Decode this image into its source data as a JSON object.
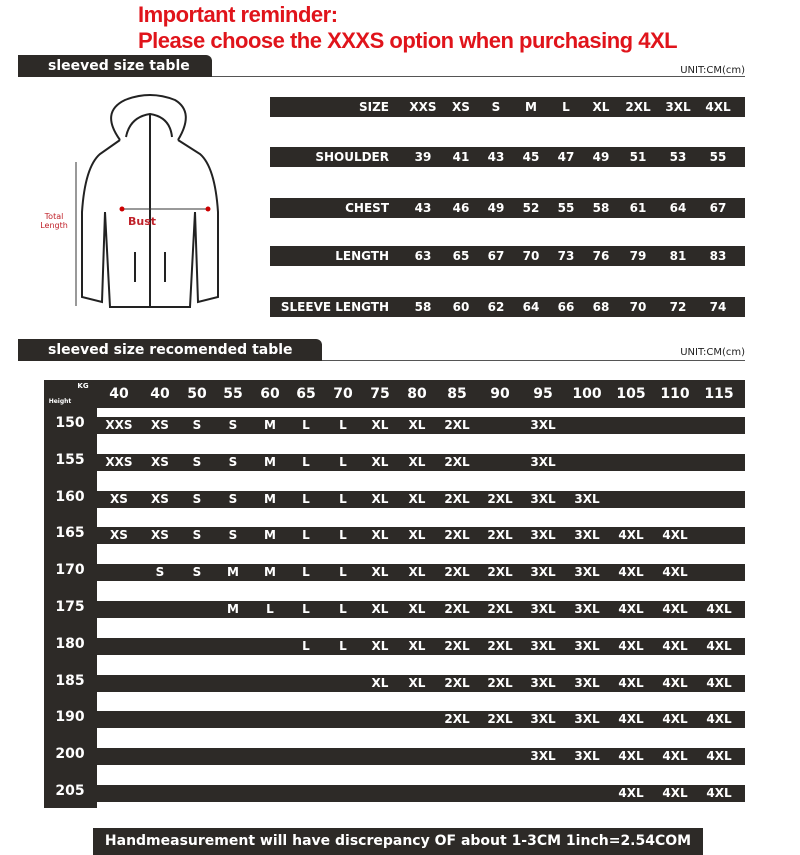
{
  "reminder": {
    "line1": "Important reminder:",
    "line2": "Please choose the XXXS option when purchasing 4XL",
    "color": "#e0141b"
  },
  "section1": {
    "title": "sleeved size table",
    "unit": "UNIT:CM(cm)"
  },
  "diagram": {
    "total_length": "Total Length",
    "bust": "Bust"
  },
  "size_table": [
    {
      "label": "SIZE",
      "values": [
        "XXS",
        "XS",
        "S",
        "M",
        "L",
        "XL",
        "2XL",
        "3XL",
        "4XL"
      ]
    },
    {
      "label": "SHOULDER",
      "values": [
        "39",
        "41",
        "43",
        "45",
        "47",
        "49",
        "51",
        "53",
        "55"
      ]
    },
    {
      "label": "CHEST",
      "values": [
        "43",
        "46",
        "49",
        "52",
        "55",
        "58",
        "61",
        "64",
        "67"
      ]
    },
    {
      "label": "LENGTH",
      "values": [
        "63",
        "65",
        "67",
        "70",
        "73",
        "76",
        "79",
        "81",
        "83"
      ]
    },
    {
      "label": "SLEEVE LENGTH",
      "values": [
        "58",
        "60",
        "62",
        "64",
        "66",
        "68",
        "70",
        "72",
        "74"
      ]
    }
  ],
  "section2": {
    "title": "sleeved size recomended table",
    "unit": "UNIT:CM(cm)"
  },
  "rec_table": {
    "kg_label": "KG",
    "height_label": "Height",
    "weights": [
      "40",
      "40",
      "50",
      "55",
      "60",
      "65",
      "70",
      "75",
      "80",
      "85",
      "90",
      "95",
      "100",
      "105",
      "110",
      "115"
    ],
    "rows": [
      {
        "height": "150",
        "sizes": [
          "XXS",
          "XS",
          "S",
          "S",
          "M",
          "L",
          "L",
          "XL",
          "XL",
          "2XL",
          "",
          "3XL",
          "",
          "",
          "",
          ""
        ]
      },
      {
        "height": "155",
        "sizes": [
          "XXS",
          "XS",
          "S",
          "S",
          "M",
          "L",
          "L",
          "XL",
          "XL",
          "2XL",
          "",
          "3XL",
          "",
          "",
          "",
          ""
        ]
      },
      {
        "height": "160",
        "sizes": [
          "XS",
          "XS",
          "S",
          "S",
          "M",
          "L",
          "L",
          "XL",
          "XL",
          "2XL",
          "2XL",
          "3XL",
          "3XL",
          "",
          "",
          ""
        ]
      },
      {
        "height": "165",
        "sizes": [
          "XS",
          "XS",
          "S",
          "S",
          "M",
          "L",
          "L",
          "XL",
          "XL",
          "2XL",
          "2XL",
          "3XL",
          "3XL",
          "4XL",
          "4XL",
          ""
        ]
      },
      {
        "height": "170",
        "sizes": [
          "",
          "S",
          "S",
          "M",
          "M",
          "L",
          "L",
          "XL",
          "XL",
          "2XL",
          "2XL",
          "3XL",
          "3XL",
          "4XL",
          "4XL",
          ""
        ]
      },
      {
        "height": "175",
        "sizes": [
          "",
          "",
          "",
          "M",
          "L",
          "L",
          "L",
          "XL",
          "XL",
          "2XL",
          "2XL",
          "3XL",
          "3XL",
          "4XL",
          "4XL",
          "4XL"
        ]
      },
      {
        "height": "180",
        "sizes": [
          "",
          "",
          "",
          "",
          "",
          "L",
          "L",
          "XL",
          "XL",
          "2XL",
          "2XL",
          "3XL",
          "3XL",
          "4XL",
          "4XL",
          "4XL"
        ]
      },
      {
        "height": "185",
        "sizes": [
          "",
          "",
          "",
          "",
          "",
          "",
          "",
          "XL",
          "XL",
          "2XL",
          "2XL",
          "3XL",
          "3XL",
          "4XL",
          "4XL",
          "4XL"
        ]
      },
      {
        "height": "190",
        "sizes": [
          "",
          "",
          "",
          "",
          "",
          "",
          "",
          "",
          "",
          "2XL",
          "2XL",
          "3XL",
          "3XL",
          "4XL",
          "4XL",
          "4XL"
        ]
      },
      {
        "height": "200",
        "sizes": [
          "",
          "",
          "",
          "",
          "",
          "",
          "",
          "",
          "",
          "",
          "",
          "3XL",
          "3XL",
          "4XL",
          "4XL",
          "4XL"
        ]
      },
      {
        "height": "205",
        "sizes": [
          "",
          "",
          "",
          "",
          "",
          "",
          "",
          "",
          "",
          "",
          "",
          "",
          "",
          "4XL",
          "4XL",
          "4XL"
        ]
      }
    ]
  },
  "footer": "Handmeasurement will have discrepancy OF about 1-3CM    1inch=2.54COM"
}
